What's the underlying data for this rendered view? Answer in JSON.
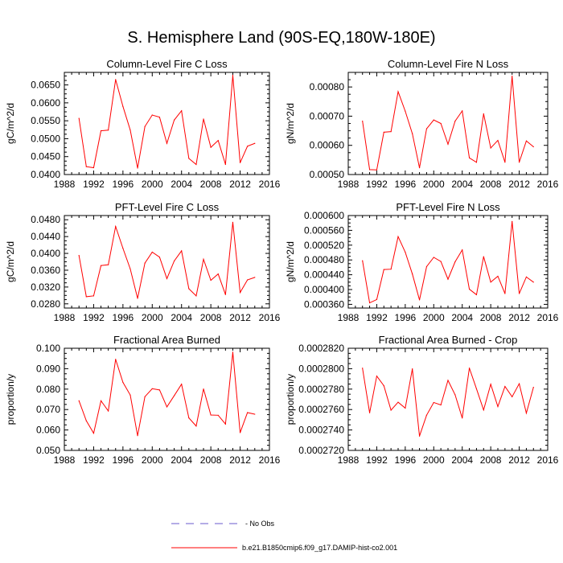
{
  "figure": {
    "title": "S. Hemisphere Land (90S-EQ,180W-180E)"
  },
  "legend": {
    "items": [
      {
        "label": "No Obs",
        "color": "#6a5acd",
        "style": "dashed"
      },
      {
        "label": "b.e21.B1850cmip6.f09_g17.DAMIP-hist-co2.001",
        "color": "#ff0000",
        "style": "solid"
      }
    ]
  },
  "chart_data": [
    {
      "type": "line",
      "title": "Column-Level Fire C Loss",
      "ylabel": "gC/m^2/d",
      "xlim": [
        1988,
        2016
      ],
      "ylim": [
        0.04,
        0.0685
      ],
      "xticks": [
        "1988",
        "1992",
        "1996",
        "2000",
        "2004",
        "2008",
        "2012",
        "2016"
      ],
      "yticks": [
        "0.0400",
        "0.0450",
        "0.0500",
        "0.0550",
        "0.0600",
        "0.0650"
      ],
      "series": [
        {
          "color": "#ff0000",
          "x": [
            1990,
            1991,
            1992,
            1993,
            1994,
            1995,
            1996,
            1997,
            1998,
            1999,
            2000,
            2001,
            2002,
            2003,
            2004,
            2005,
            2006,
            2007,
            2008,
            2009,
            2010,
            2011,
            2012,
            2013,
            2014
          ],
          "values": [
            0.0557,
            0.0422,
            0.0419,
            0.0522,
            0.0524,
            0.0665,
            0.059,
            0.0524,
            0.0418,
            0.0534,
            0.0566,
            0.056,
            0.0487,
            0.0552,
            0.0578,
            0.0445,
            0.0428,
            0.0555,
            0.0476,
            0.0495,
            0.0428,
            0.0677,
            0.0433,
            0.0479,
            0.0487
          ]
        }
      ]
    },
    {
      "type": "line",
      "title": "Column-Level Fire N Loss",
      "ylabel": "gN/m^2/d",
      "xlim": [
        1988,
        2016
      ],
      "ylim": [
        0.0005,
        0.00085
      ],
      "xticks": [
        "1988",
        "1992",
        "1996",
        "2000",
        "2004",
        "2008",
        "2012",
        "2016"
      ],
      "yticks": [
        "0.00050",
        "0.00060",
        "0.00070",
        "0.00080"
      ],
      "series": [
        {
          "color": "#ff0000",
          "x": [
            1990,
            1991,
            1992,
            1993,
            1994,
            1995,
            1996,
            1997,
            1998,
            1999,
            2000,
            2001,
            2002,
            2003,
            2004,
            2005,
            2006,
            2007,
            2008,
            2009,
            2010,
            2011,
            2012,
            2013,
            2014
          ],
          "values": [
            0.000683,
            0.000517,
            0.000516,
            0.000645,
            0.000647,
            0.000784,
            0.000717,
            0.00064,
            0.000523,
            0.000657,
            0.000687,
            0.000675,
            0.000604,
            0.000683,
            0.000718,
            0.000557,
            0.000542,
            0.000708,
            0.000591,
            0.000617,
            0.000542,
            0.000837,
            0.000542,
            0.000615,
            0.000595
          ]
        }
      ]
    },
    {
      "type": "line",
      "title": "PFT-Level Fire C Loss",
      "ylabel": "gC/m^2/d",
      "xlim": [
        1988,
        2016
      ],
      "ylim": [
        0.027,
        0.049
      ],
      "xticks": [
        "1988",
        "1992",
        "1996",
        "2000",
        "2004",
        "2008",
        "2012",
        "2016"
      ],
      "yticks": [
        "0.0280",
        "0.0320",
        "0.0360",
        "0.0400",
        "0.0440",
        "0.0480"
      ],
      "series": [
        {
          "color": "#ff0000",
          "x": [
            1990,
            1991,
            1992,
            1993,
            1994,
            1995,
            1996,
            1997,
            1998,
            1999,
            2000,
            2001,
            2002,
            2003,
            2004,
            2005,
            2006,
            2007,
            2008,
            2009,
            2010,
            2011,
            2012,
            2013,
            2014
          ],
          "values": [
            0.0395,
            0.0297,
            0.0299,
            0.0371,
            0.0373,
            0.0464,
            0.0412,
            0.0363,
            0.0293,
            0.0377,
            0.0403,
            0.0391,
            0.034,
            0.0382,
            0.0406,
            0.0316,
            0.0299,
            0.0386,
            0.0336,
            0.0351,
            0.0302,
            0.0474,
            0.0307,
            0.0337,
            0.0343
          ]
        }
      ]
    },
    {
      "type": "line",
      "title": "PFT-Level Fire N Loss",
      "ylabel": "gN/m^2/d",
      "xlim": [
        1988,
        2016
      ],
      "ylim": [
        0.00035,
        0.0006
      ],
      "xticks": [
        "1988",
        "1992",
        "1996",
        "2000",
        "2004",
        "2008",
        "2012",
        "2016"
      ],
      "yticks": [
        "0.000360",
        "0.000400",
        "0.000440",
        "0.000480",
        "0.000520",
        "0.000560",
        "0.000600"
      ],
      "series": [
        {
          "color": "#ff0000",
          "x": [
            1990,
            1991,
            1992,
            1993,
            1994,
            1995,
            1996,
            1997,
            1998,
            1999,
            2000,
            2001,
            2002,
            2003,
            2004,
            2005,
            2006,
            2007,
            2008,
            2009,
            2010,
            2011,
            2012,
            2013,
            2014
          ],
          "values": [
            0.000478,
            0.000364,
            0.000373,
            0.000454,
            0.000455,
            0.000543,
            0.000501,
            0.000442,
            0.000372,
            0.000462,
            0.000487,
            0.000476,
            0.000428,
            0.000475,
            0.000507,
            0.000401,
            0.000386,
            0.000489,
            0.00042,
            0.000436,
            0.000389,
            0.000584,
            0.000389,
            0.000434,
            0.00042
          ]
        }
      ]
    },
    {
      "type": "line",
      "title": "Fractional Area Burned",
      "ylabel": "proportion/y",
      "xlim": [
        1988,
        2016
      ],
      "ylim": [
        0.05,
        0.1
      ],
      "xticks": [
        "1988",
        "1992",
        "1996",
        "2000",
        "2004",
        "2008",
        "2012",
        "2016"
      ],
      "yticks": [
        "0.050",
        "0.060",
        "0.070",
        "0.080",
        "0.090",
        "0.100"
      ],
      "series": [
        {
          "color": "#ff0000",
          "x": [
            1990,
            1991,
            1992,
            1993,
            1994,
            1995,
            1996,
            1997,
            1998,
            1999,
            2000,
            2001,
            2002,
            2003,
            2004,
            2005,
            2006,
            2007,
            2008,
            2009,
            2010,
            2011,
            2012,
            2013,
            2014
          ],
          "values": [
            0.0743,
            0.0645,
            0.0584,
            0.0743,
            0.0693,
            0.0946,
            0.0833,
            0.0771,
            0.0572,
            0.0763,
            0.0802,
            0.0796,
            0.0713,
            0.0768,
            0.0824,
            0.0659,
            0.0619,
            0.0801,
            0.0673,
            0.0672,
            0.0629,
            0.0981,
            0.0587,
            0.0685,
            0.0677
          ]
        }
      ]
    },
    {
      "type": "line",
      "title": "Fractional Area Burned - Crop",
      "ylabel": "proportion/y",
      "xlim": [
        1988,
        2016
      ],
      "ylim": [
        0.000272,
        0.000282
      ],
      "xticks": [
        "1988",
        "1992",
        "1996",
        "2000",
        "2004",
        "2008",
        "2012",
        "2016"
      ],
      "yticks": [
        "0.0002720",
        "0.0002740",
        "0.0002760",
        "0.0002780",
        "0.0002800",
        "0.0002820"
      ],
      "series": [
        {
          "color": "#ff0000",
          "x": [
            1990,
            1991,
            1992,
            1993,
            1994,
            1995,
            1996,
            1997,
            1998,
            1999,
            2000,
            2001,
            2002,
            2003,
            2004,
            2005,
            2006,
            2007,
            2008,
            2009,
            2010,
            2011,
            2012,
            2013,
            2014
          ],
          "values": [
            0.00028005,
            0.00027568,
            0.00027928,
            0.00027833,
            0.00027594,
            0.00027672,
            0.00027614,
            0.00027998,
            0.0002734,
            0.00027545,
            0.00027669,
            0.00027645,
            0.00027886,
            0.00027744,
            0.00027517,
            0.00028006,
            0.00027803,
            0.00027596,
            0.00027848,
            0.00027629,
            0.00027826,
            0.00027725,
            0.00027853,
            0.00027565,
            0.00027818
          ]
        }
      ]
    }
  ]
}
